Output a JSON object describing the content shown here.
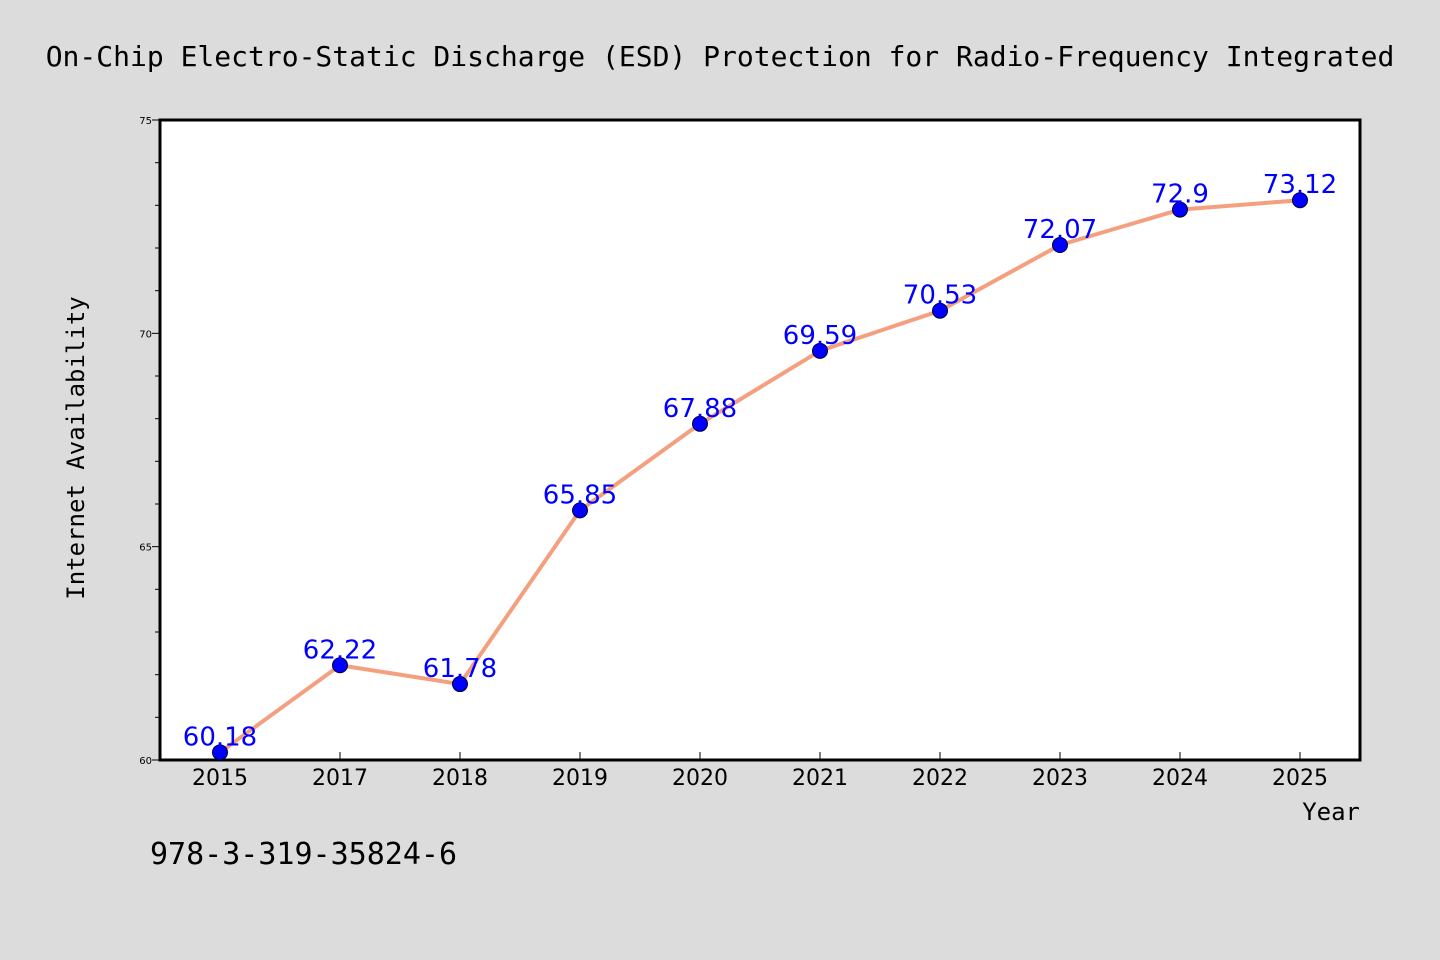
{
  "chart_data": {
    "type": "line",
    "title": "On-Chip Electro-Static Discharge (ESD) Protection for Radio-Frequency Integrated",
    "xlabel": "Year",
    "ylabel": "Internet Availability",
    "categories": [
      "2015",
      "2017",
      "2018",
      "2019",
      "2020",
      "2021",
      "2022",
      "2023",
      "2024",
      "2025"
    ],
    "series": [
      {
        "values": [
          60.18,
          62.22,
          61.78,
          65.85,
          67.88,
          69.59,
          70.53,
          72.07,
          72.9,
          73.12
        ]
      }
    ],
    "data_labels": [
      "60.18",
      "62.22",
      "61.78",
      "65.85",
      "67.88",
      "69.59",
      "70.53",
      "72.07",
      "72.9",
      "73.12"
    ],
    "ylim": [
      60,
      75
    ],
    "yticks": [
      "60",
      "65",
      "70",
      "75"
    ],
    "grid": false,
    "line_color": "#f4a07f",
    "marker_color": "#0000ff",
    "label_color": "#0000ff"
  },
  "footer_text": "978-3-319-35824-6"
}
